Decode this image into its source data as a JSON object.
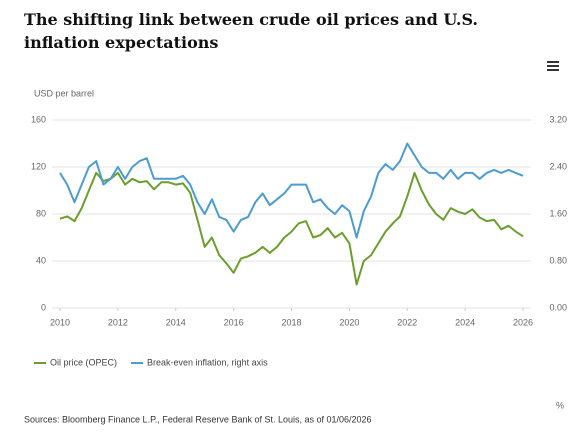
{
  "chart_data": {
    "type": "line",
    "title": "The shifting link between crude oil prices and U.S. inflation expectations",
    "y_label": "USD per barrel",
    "y2_label": "%",
    "source": "Sources: Bloomberg Finance L.P., Federal Reserve Bank of St. Louis, as of 01/06/2026",
    "x": [
      2010,
      2010.25,
      2010.5,
      2010.75,
      2011,
      2011.25,
      2011.5,
      2011.75,
      2012,
      2012.25,
      2012.5,
      2012.75,
      2013,
      2013.25,
      2013.5,
      2013.75,
      2014,
      2014.25,
      2014.5,
      2014.75,
      2015,
      2015.25,
      2015.5,
      2015.75,
      2016,
      2016.25,
      2016.5,
      2016.75,
      2017,
      2017.25,
      2017.5,
      2017.75,
      2018,
      2018.25,
      2018.5,
      2018.75,
      2019,
      2019.25,
      2019.5,
      2019.75,
      2020,
      2020.25,
      2020.5,
      2020.75,
      2021,
      2021.25,
      2021.5,
      2021.75,
      2022,
      2022.25,
      2022.5,
      2022.75,
      2023,
      2023.25,
      2023.5,
      2023.75,
      2024,
      2024.25,
      2024.5,
      2024.75,
      2025,
      2025.25,
      2025.5,
      2025.75,
      2026
    ],
    "xlim": [
      2010,
      2026
    ],
    "xticks": [
      2010,
      2012,
      2014,
      2016,
      2018,
      2020,
      2022,
      2024,
      2026
    ],
    "ylim": [
      0,
      160
    ],
    "yticks": [
      0,
      40,
      80,
      120,
      160
    ],
    "y2lim": [
      0,
      3.2
    ],
    "y2ticks": [
      {
        "value": 0,
        "label": "0.00"
      },
      {
        "value": 0.8,
        "label": "0.80"
      },
      {
        "value": 1.6,
        "label": "1.60"
      },
      {
        "value": 2.4,
        "label": "2.40"
      },
      {
        "value": 3.2,
        "label": "3.20"
      }
    ],
    "grid": true,
    "series": [
      {
        "name": "Oil price (OPEC)",
        "color": "#6b9e2b",
        "values": [
          76,
          78,
          74,
          85,
          100,
          115,
          108,
          110,
          115,
          105,
          110,
          107,
          108,
          101,
          107,
          107,
          105,
          106,
          98,
          75,
          52,
          60,
          45,
          38,
          30,
          42,
          44,
          47,
          52,
          47,
          52,
          60,
          65,
          72,
          74,
          60,
          62,
          68,
          60,
          64,
          55,
          20,
          40,
          45,
          55,
          65,
          72,
          78,
          95,
          115,
          100,
          88,
          80,
          75,
          85,
          82,
          80,
          84,
          77,
          74,
          75,
          67,
          70,
          65,
          61
        ]
      },
      {
        "name": "Break-even inflation, right axis",
        "color": "#4b9cd0",
        "axis": "y2",
        "values": [
          2.3,
          2.1,
          1.8,
          2.1,
          2.4,
          2.5,
          2.1,
          2.2,
          2.4,
          2.2,
          2.4,
          2.5,
          2.55,
          2.2,
          2.2,
          2.2,
          2.2,
          2.25,
          2.1,
          1.8,
          1.6,
          1.85,
          1.55,
          1.5,
          1.3,
          1.5,
          1.55,
          1.8,
          1.95,
          1.75,
          1.85,
          1.95,
          2.1,
          2.1,
          2.1,
          1.8,
          1.85,
          1.7,
          1.6,
          1.75,
          1.65,
          1.2,
          1.65,
          1.9,
          2.3,
          2.45,
          2.35,
          2.5,
          2.8,
          2.6,
          2.4,
          2.3,
          2.3,
          2.2,
          2.35,
          2.2,
          2.3,
          2.3,
          2.2,
          2.3,
          2.35,
          2.3,
          2.35,
          2.3,
          2.25
        ]
      }
    ]
  }
}
